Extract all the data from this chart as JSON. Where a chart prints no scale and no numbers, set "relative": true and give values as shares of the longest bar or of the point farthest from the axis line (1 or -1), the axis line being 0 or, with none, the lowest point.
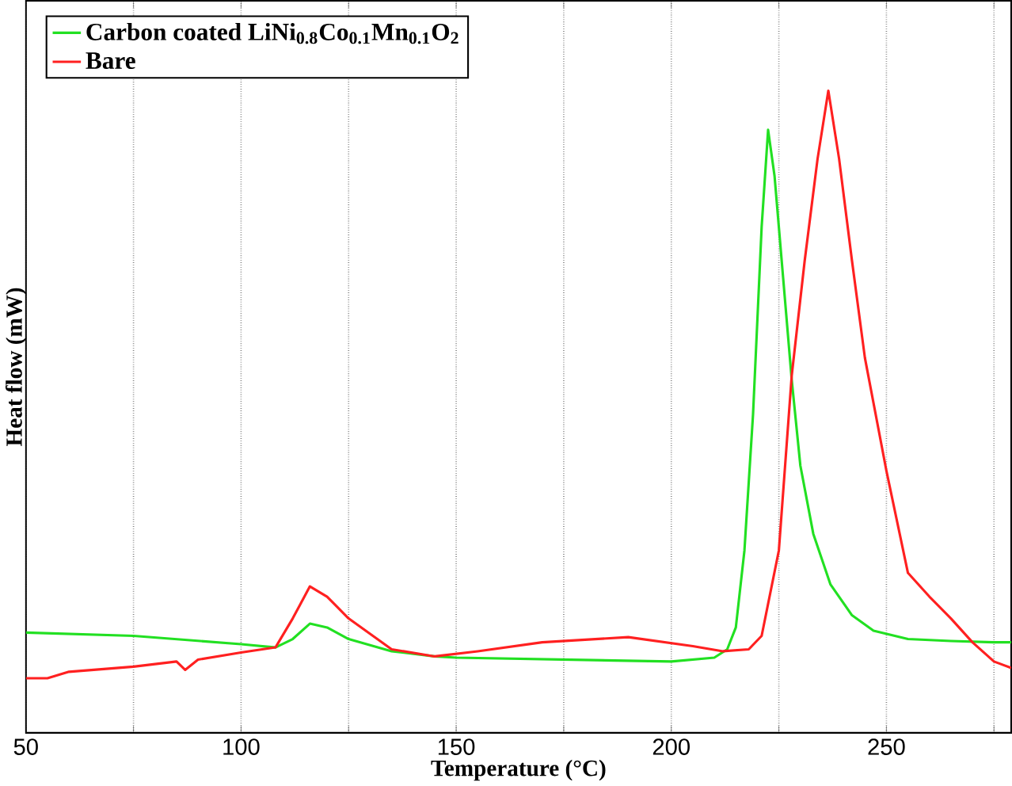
{
  "chart_data": {
    "type": "line",
    "relative": true,
    "xlabel": "Temperature (°C)",
    "ylabel": "Heat flow (mW)",
    "xlim": [
      50,
      279
    ],
    "xticks": [
      50,
      {
        "value": 75,
        "label": null
      },
      100,
      {
        "value": 125,
        "label": null
      },
      150,
      {
        "value": 175,
        "label": null
      },
      200,
      {
        "value": 225,
        "label": null
      },
      250,
      {
        "value": 275,
        "label": null
      }
    ],
    "grid": "x",
    "legend": "top left",
    "line_style": "solid",
    "series": [
      {
        "name": "Carbon coated LiNi$_{0.8}$Co$_{0.1}$Mn$_{0.1}$O$_{2}$",
        "color": "#22e022",
        "x": [
          50,
          75,
          100,
          108,
          112,
          116,
          120,
          125,
          135,
          145,
          150,
          175,
          200,
          210,
          213,
          215,
          217,
          219,
          221,
          222.5,
          224,
          226,
          228,
          230,
          233,
          237,
          242,
          247,
          255,
          265,
          275,
          279
        ],
        "values": [
          0.156,
          0.151,
          0.138,
          0.133,
          0.146,
          0.17,
          0.164,
          0.146,
          0.127,
          0.119,
          0.117,
          0.114,
          0.111,
          0.117,
          0.13,
          0.164,
          0.284,
          0.496,
          0.788,
          0.939,
          0.867,
          0.708,
          0.549,
          0.416,
          0.31,
          0.231,
          0.183,
          0.159,
          0.146,
          0.143,
          0.141,
          0.141
        ]
      },
      {
        "name": "Bare",
        "color": "#ff2020",
        "x": [
          50,
          55,
          60,
          75,
          85,
          87,
          90,
          100,
          108,
          112,
          116,
          120,
          125,
          135,
          145,
          155,
          170,
          190,
          205,
          212,
          218,
          221,
          225,
          228,
          231,
          234,
          236.5,
          239,
          242,
          245,
          250,
          255,
          260,
          265,
          270,
          275,
          279
        ],
        "values": [
          0.085,
          0.085,
          0.095,
          0.103,
          0.111,
          0.098,
          0.114,
          0.125,
          0.133,
          0.178,
          0.228,
          0.212,
          0.178,
          0.13,
          0.119,
          0.127,
          0.141,
          0.149,
          0.135,
          0.127,
          0.13,
          0.151,
          0.284,
          0.557,
          0.735,
          0.894,
          1.0,
          0.894,
          0.735,
          0.584,
          0.408,
          0.249,
          0.212,
          0.178,
          0.141,
          0.111,
          0.101
        ]
      }
    ]
  }
}
